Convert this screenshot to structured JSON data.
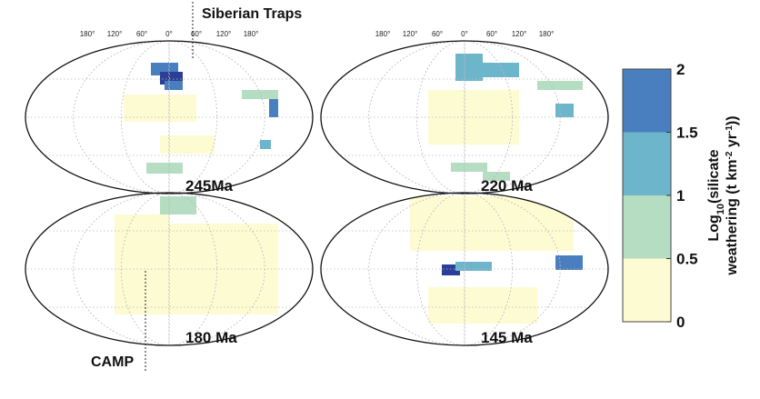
{
  "callouts": {
    "top": "Siberian Traps",
    "bottom": "CAMP"
  },
  "panels": [
    {
      "label": "245Ma",
      "longitude_labels": [
        "180°",
        "120°",
        "60°",
        "0°",
        "60°",
        "120°",
        "180°"
      ]
    },
    {
      "label": "220 Ma",
      "longitude_labels": [
        "180°",
        "120°",
        "60°",
        "0°",
        "60°",
        "120°",
        "180°"
      ]
    },
    {
      "label": "180 Ma"
    },
    {
      "label": "145 Ma"
    }
  ],
  "colorbar": {
    "ticks": [
      0,
      0.5,
      1,
      1.5,
      2
    ],
    "colors": [
      "#fdfbd2",
      "#b5ddc2",
      "#6db5cb",
      "#4a7fbf",
      "#2b3f98"
    ],
    "label": {
      "line1": [
        "Log",
        "10",
        "(silicate"
      ],
      "line2": [
        "weathering (t km",
        "-2",
        " yr",
        "-1",
        "))"
      ]
    }
  }
}
